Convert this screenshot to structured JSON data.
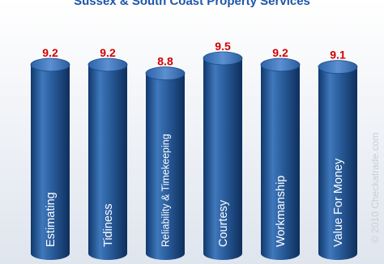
{
  "chart_data": {
    "type": "bar",
    "title": "Sussex & South Coast Property Services",
    "categories": [
      "Estimating",
      "Tidiness",
      "Reliability & Timekeeping",
      "Courtesy",
      "Workmanship",
      "Value For Money"
    ],
    "values": [
      9.2,
      9.2,
      8.8,
      9.5,
      9.2,
      9.1
    ],
    "value_labels": [
      "9.2",
      "9.2",
      "8.8",
      "9.5",
      "9.2",
      "9.1"
    ],
    "ylim": [
      0,
      10
    ],
    "grid": false,
    "bar_color": "#2a5d9c",
    "label_color": "#d40000"
  },
  "watermark": "© 2010 Checkatrade.com"
}
